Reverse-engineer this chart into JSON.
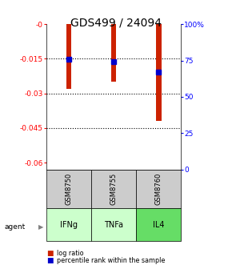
{
  "title": "GDS499 / 24094",
  "categories": [
    1,
    2,
    3
  ],
  "bar_labels": [
    "IFNg",
    "TNFa",
    "IL4"
  ],
  "sample_labels": [
    "GSM8750",
    "GSM8755",
    "GSM8760"
  ],
  "log_ratios": [
    -0.028,
    -0.025,
    -0.042
  ],
  "percentile_ranks": [
    76,
    74,
    67
  ],
  "bar_color": "#cc2200",
  "dot_color": "#0000cc",
  "ylim_left": [
    -0.063,
    0.0
  ],
  "yticks_left": [
    0,
    -0.015,
    -0.03,
    -0.045,
    -0.06
  ],
  "ytick_labels_left": [
    "-0",
    "-0.015",
    "-0.03",
    "-0.045",
    "-0.06"
  ],
  "ylim_right": [
    0,
    100
  ],
  "yticks_right": [
    0,
    25,
    50,
    75,
    100
  ],
  "ytick_labels_right": [
    "0",
    "25",
    "50",
    "75",
    "100%"
  ],
  "hlines": [
    -0.015,
    -0.03,
    -0.045
  ],
  "legend_log": "log ratio",
  "legend_pct": "percentile rank within the sample",
  "gray_bg": "#cccccc",
  "agent_green_light": "#ccffcc",
  "agent_green_dark": "#66dd66",
  "title_fontsize": 10,
  "bar_width": 0.12
}
